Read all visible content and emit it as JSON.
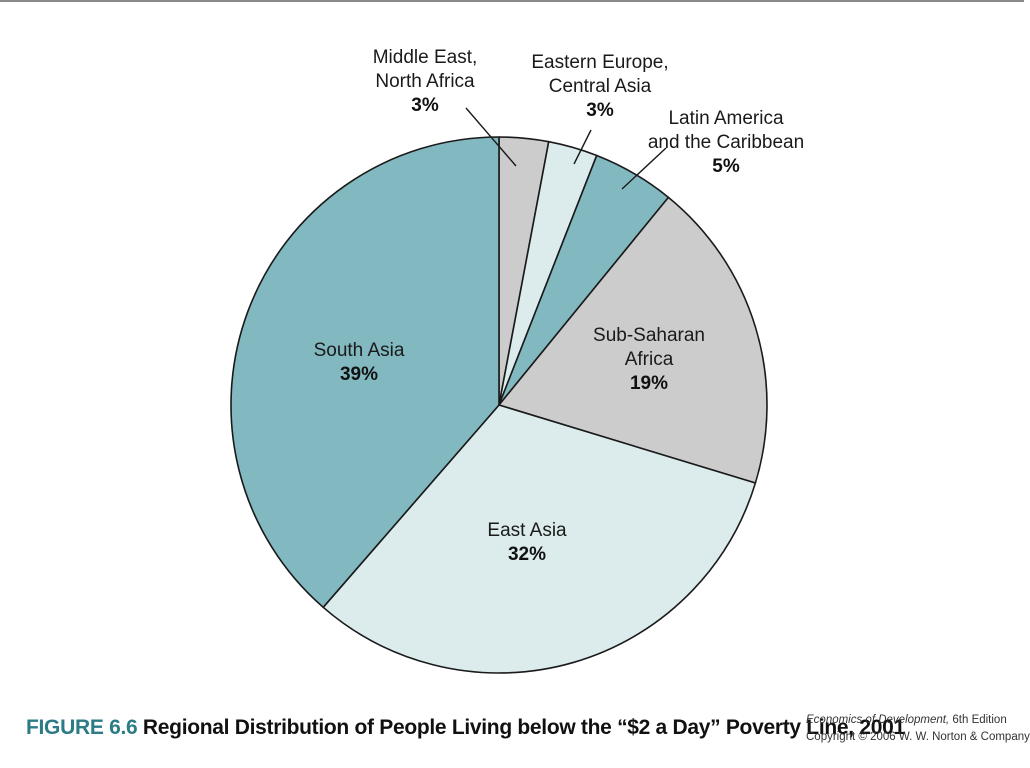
{
  "caption": {
    "figure_label": "FIGURE 6.6",
    "title": "Regional Distribution of People Living below the “$2 a Day” Poverty Line, 2001"
  },
  "credit": {
    "book_title": "Economics of Development,",
    "edition": " 6th Edition",
    "copyright": "Copyright © 2006 W. W. Norton & Company"
  },
  "colors": {
    "teal": "#82b9c1",
    "pale_teal": "#dcecec",
    "gray": "#cccccc",
    "outline": "#1a1a1a"
  },
  "chart_data": {
    "type": "pie",
    "title": "",
    "slices": [
      {
        "label_lines": [
          "Middle East,",
          "North Africa"
        ],
        "pct_label": "3%",
        "value": 3,
        "color": "#cccccc"
      },
      {
        "label_lines": [
          "Eastern Europe,",
          "Central Asia"
        ],
        "pct_label": "3%",
        "value": 3,
        "color": "#dcecec"
      },
      {
        "label_lines": [
          "Latin America",
          "and the Caribbean"
        ],
        "pct_label": "5%",
        "value": 5,
        "color": "#82b9c1"
      },
      {
        "label_lines": [
          "Sub-Saharan",
          "Africa"
        ],
        "pct_label": "19%",
        "value": 19,
        "color": "#cccccc"
      },
      {
        "label_lines": [
          "East Asia"
        ],
        "pct_label": "32%",
        "value": 32,
        "color": "#dcecec"
      },
      {
        "label_lines": [
          "South Asia"
        ],
        "pct_label": "39%",
        "value": 39,
        "color": "#82b9c1"
      }
    ],
    "start_angle": "12 o'clock",
    "direction": "clockwise"
  }
}
